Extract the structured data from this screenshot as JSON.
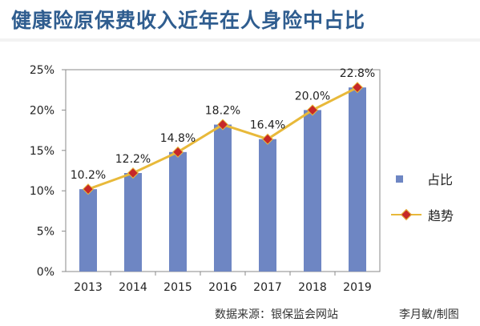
{
  "title": "健康险原保费收入近年在人身险中占比",
  "footer": {
    "source": "数据来源：银保监会网站",
    "credit": "李月敏/制图"
  },
  "colors": {
    "bar": "#6e86c3",
    "line": "#e8b93a",
    "marker": "#c62828",
    "title": "#2f5d8f"
  },
  "chart_data": {
    "type": "bar",
    "categories": [
      "2013",
      "2014",
      "2015",
      "2016",
      "2017",
      "2018",
      "2019"
    ],
    "series": [
      {
        "name": "占比",
        "type": "bar",
        "values": [
          10.2,
          12.2,
          14.8,
          18.2,
          16.4,
          20.0,
          22.8
        ]
      },
      {
        "name": "趋势",
        "type": "line",
        "values": [
          10.2,
          12.2,
          14.8,
          18.2,
          16.4,
          20.0,
          22.8
        ]
      }
    ],
    "data_labels": [
      "10.2%",
      "12.2%",
      "14.8%",
      "18.2%",
      "16.4%",
      "20.0%",
      "22.8%"
    ],
    "y_ticks": [
      "0%",
      "5%",
      "10%",
      "15%",
      "20%",
      "25%"
    ],
    "ylim": [
      0,
      25
    ],
    "grid": false,
    "legend_position": "right"
  }
}
